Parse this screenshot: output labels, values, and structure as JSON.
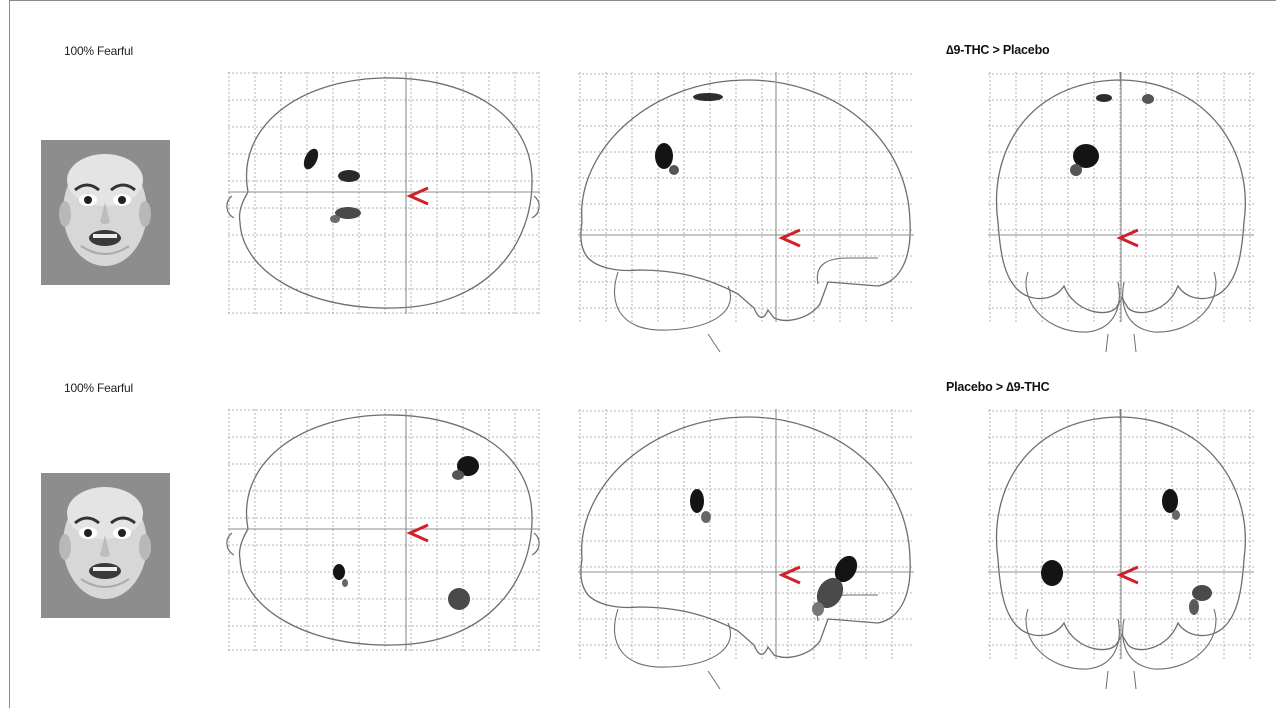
{
  "rows": [
    {
      "stimulus_label": "100% Fearful",
      "contrast_title": "∆9-THC > Placebo"
    },
    {
      "stimulus_label": "100% Fearful",
      "contrast_title": "Placebo > ∆9-THC"
    }
  ],
  "colors": {
    "background": "#ffffff",
    "grid": "#9a9a9a",
    "outline": "#6e6e6e",
    "crosshair": "#8c8c8c",
    "marker": "#d0202a",
    "blob": "#1a1a1a",
    "face_bg": "#8d8d8d"
  },
  "icons": {
    "cursor_marker": "red-chevron-left-icon",
    "stimulus": "fearful-face-image"
  }
}
